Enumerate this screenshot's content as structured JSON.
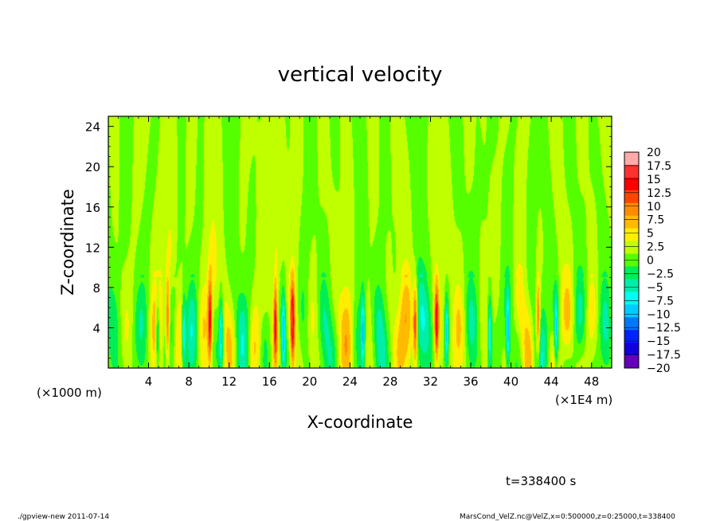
{
  "chart_data": {
    "type": "heatmap",
    "title": "vertical velocity",
    "xlabel": "X-coordinate",
    "ylabel": "Z-coordinate",
    "x_scale_label": "(×1E4 m)",
    "y_scale_label": "(×1000 m)",
    "xlim": [
      0,
      50
    ],
    "ylim": [
      0,
      25
    ],
    "x_ticks": [
      4,
      8,
      12,
      16,
      20,
      24,
      28,
      32,
      36,
      40,
      44,
      48
    ],
    "y_ticks": [
      4,
      8,
      12,
      16,
      20,
      24
    ],
    "colorbar": {
      "levels": [
        20,
        17.5,
        15,
        12.5,
        10,
        7.5,
        5,
        2.5,
        0,
        -2.5,
        -5,
        -7.5,
        -10,
        -12.5,
        -15,
        -17.5,
        -20
      ],
      "level_labels": [
        "20",
        "17.5",
        "15",
        "12.5",
        "10",
        "7.5",
        "5",
        "2.5",
        "0",
        "−2.5",
        "−5",
        "−7.5",
        "−10",
        "−12.5",
        "−15",
        "−17.5",
        "−20"
      ],
      "colors": [
        "#ffaaaa",
        "#ff3030",
        "#ff0000",
        "#ff4400",
        "#ff8c00",
        "#ffbb00",
        "#ffee00",
        "#bfff00",
        "#55ff00",
        "#00ee55",
        "#00eeaa",
        "#00ffee",
        "#00ccff",
        "#0077ff",
        "#0022ff",
        "#1100dd",
        "#6600bb"
      ]
    },
    "features": {
      "updraft_columns_x": [
        5.9,
        10.1,
        16.6,
        18.3,
        30.5,
        32.6,
        42.7
      ],
      "downdraft_columns_x": [
        4.9,
        7.5,
        11.2,
        17.4,
        25.3,
        33.6,
        37.9,
        39.7,
        44.5
      ],
      "active_layer_top_z": 9
    }
  },
  "annotations": {
    "time": "t=338400 s",
    "footer_left": "./gpview-new  2011-07-14",
    "footer_right": "MarsCond_VelZ.nc@VelZ,x=0:500000,z=0:25000,t=338400"
  }
}
